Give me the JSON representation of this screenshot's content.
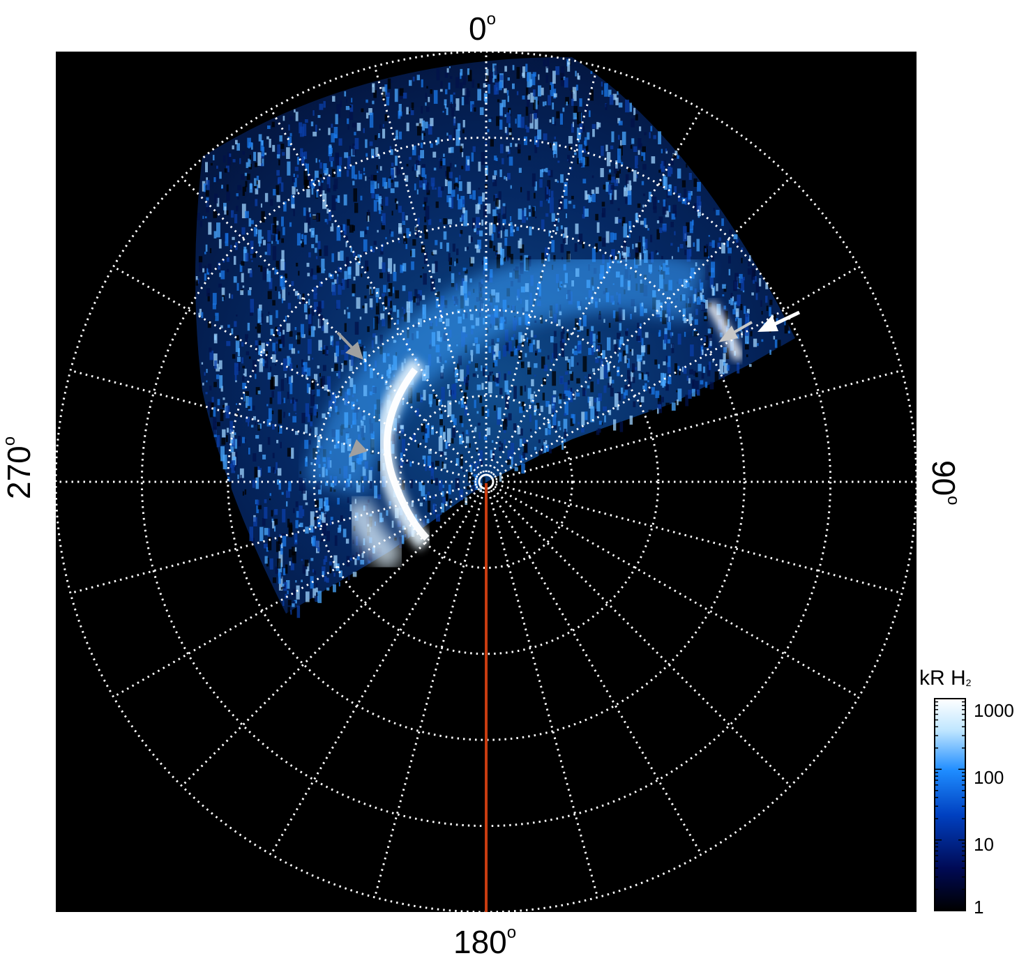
{
  "axes_labels": {
    "top": "0",
    "bottom": "180",
    "left": "270",
    "right": "90",
    "degree_symbol": "o"
  },
  "colorbar": {
    "title": "kR H",
    "title_subscript": "2",
    "ticks": [
      "1000",
      "100",
      "10",
      "1"
    ],
    "scale": "log",
    "range": [
      1,
      1000
    ],
    "colors": [
      "#000000",
      "#000a55",
      "#0040c0",
      "#1e8cff",
      "#bfe6ff",
      "#ffffff"
    ]
  },
  "colors": {
    "background": "#000000",
    "grid": "#ffffff",
    "meridian_line": "#c83c10",
    "arrow_white": "#ffffff",
    "arrow_gray": "#a0a0a0"
  }
}
